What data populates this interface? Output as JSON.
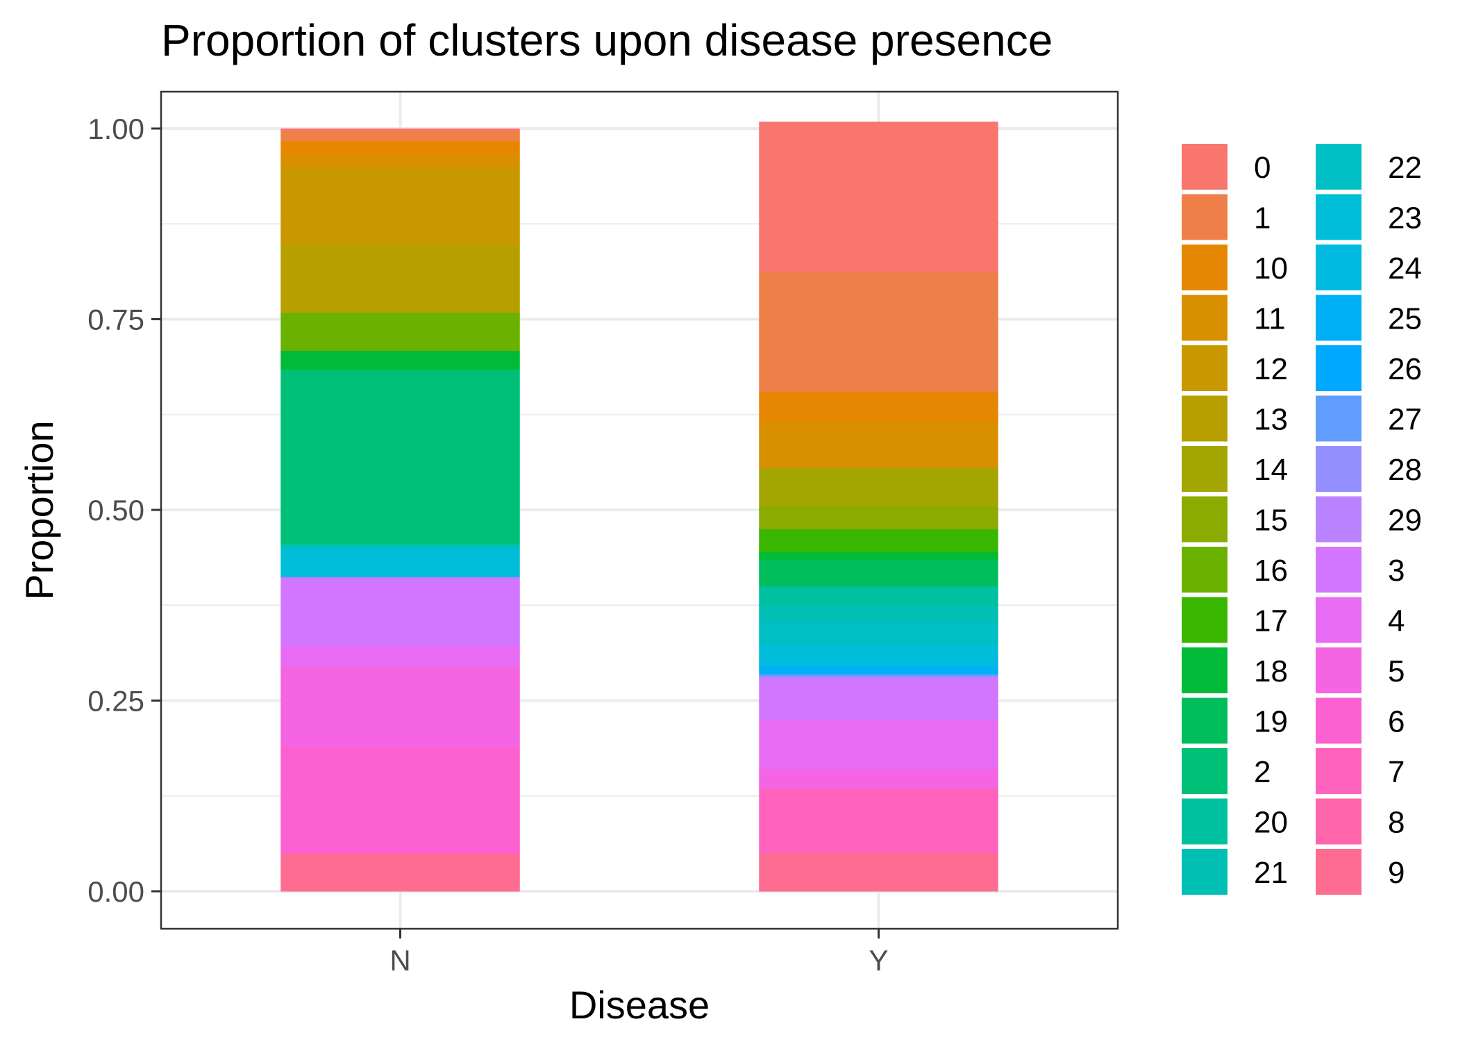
{
  "chart_data": {
    "type": "bar",
    "stacked": true,
    "title": "Proportion of clusters upon disease presence",
    "xlabel": "Disease",
    "ylabel": "Proportion",
    "categories": [
      "N",
      "Y"
    ],
    "ylim": [
      0,
      1
    ],
    "yticks": [
      "0.00",
      "0.25",
      "0.50",
      "0.75",
      "1.00"
    ],
    "grid": true,
    "legend_position": "right",
    "legend_columns": 2,
    "stack_order": [
      "0",
      "1",
      "10",
      "11",
      "12",
      "13",
      "14",
      "15",
      "16",
      "17",
      "18",
      "19",
      "2",
      "20",
      "21",
      "22",
      "23",
      "24",
      "25",
      "26",
      "27",
      "28",
      "29",
      "3",
      "4",
      "5",
      "6",
      "7",
      "8",
      "9"
    ],
    "series": [
      {
        "name": "0",
        "color": "#F8766D",
        "values": [
          0.003,
          0.197
        ]
      },
      {
        "name": "1",
        "color": "#EF7F49",
        "values": [
          0.013,
          0.157
        ]
      },
      {
        "name": "10",
        "color": "#E58700",
        "values": [
          0.02,
          0.04
        ]
      },
      {
        "name": "11",
        "color": "#D89000",
        "values": [
          0.015,
          0.06
        ]
      },
      {
        "name": "12",
        "color": "#C99800",
        "values": [
          0.1,
          0.0
        ]
      },
      {
        "name": "13",
        "color": "#B79F00",
        "values": [
          0.09,
          0.0
        ]
      },
      {
        "name": "14",
        "color": "#A3A500",
        "values": [
          0.0,
          0.05
        ]
      },
      {
        "name": "15",
        "color": "#8CAB00",
        "values": [
          0.0,
          0.03
        ]
      },
      {
        "name": "16",
        "color": "#6BB100",
        "values": [
          0.05,
          0.0
        ]
      },
      {
        "name": "17",
        "color": "#39B600",
        "values": [
          0.0,
          0.03
        ]
      },
      {
        "name": "18",
        "color": "#00BA38",
        "values": [
          0.025,
          0.01
        ]
      },
      {
        "name": "19",
        "color": "#00BD5C",
        "values": [
          0.0,
          0.035
        ]
      },
      {
        "name": "2",
        "color": "#00C078",
        "values": [
          0.228,
          0.0
        ]
      },
      {
        "name": "20",
        "color": "#00C19F",
        "values": [
          0.004,
          0.025
        ]
      },
      {
        "name": "21",
        "color": "#00C0B6",
        "values": [
          0.0,
          0.02
        ]
      },
      {
        "name": "22",
        "color": "#00BFC4",
        "values": [
          0.0,
          0.03
        ]
      },
      {
        "name": "23",
        "color": "#00BDD8",
        "values": [
          0.04,
          0.02
        ]
      },
      {
        "name": "24",
        "color": "#00BAE0",
        "values": [
          0.0,
          0.01
        ]
      },
      {
        "name": "25",
        "color": "#00B0F6",
        "values": [
          0.0,
          0.01
        ]
      },
      {
        "name": "26",
        "color": "#00A9FF",
        "values": [
          0.0,
          0.0
        ]
      },
      {
        "name": "27",
        "color": "#619CFF",
        "values": [
          0.0,
          0.002
        ]
      },
      {
        "name": "28",
        "color": "#9590FF",
        "values": [
          0.0,
          0.003
        ]
      },
      {
        "name": "29",
        "color": "#B983FF",
        "values": [
          0.0,
          0.0
        ]
      },
      {
        "name": "3",
        "color": "#D376FF",
        "values": [
          0.09,
          0.055
        ]
      },
      {
        "name": "4",
        "color": "#E76BF3",
        "values": [
          0.027,
          0.065
        ]
      },
      {
        "name": "5",
        "color": "#F564E3",
        "values": [
          0.105,
          0.025
        ]
      },
      {
        "name": "6",
        "color": "#FD61D1",
        "values": [
          0.14,
          0.0
        ]
      },
      {
        "name": "7",
        "color": "#FF62BC",
        "values": [
          0.0,
          0.085
        ]
      },
      {
        "name": "8",
        "color": "#FF65A9",
        "values": [
          0.0,
          0.0
        ]
      },
      {
        "name": "9",
        "color": "#FF6C91",
        "values": [
          0.05,
          0.05
        ]
      }
    ]
  }
}
